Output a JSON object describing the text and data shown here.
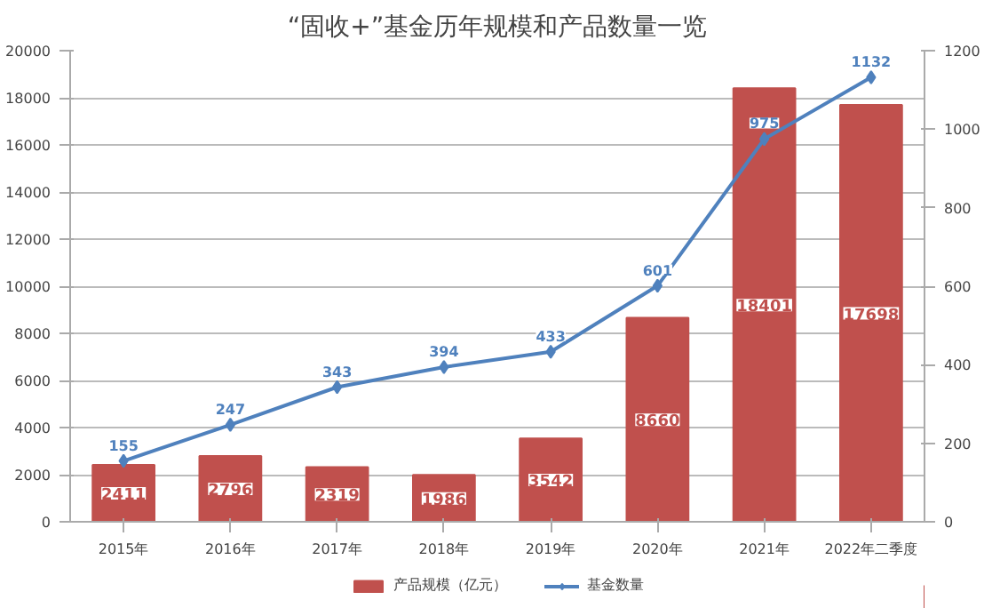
{
  "chart_data": {
    "type": "bar",
    "title": "“固收+”基金历年规模和产品数量一览",
    "categories": [
      "2015年",
      "2016年",
      "2017年",
      "2018年",
      "2019年",
      "2020年",
      "2021年",
      "2022年二季度"
    ],
    "series": [
      {
        "name": "产品规模（亿元）",
        "color": "#c0504d",
        "values": [
          2411,
          2796,
          2319,
          1986,
          3542,
          8660,
          18401,
          17698
        ]
      },
      {
        "name": "基金数量",
        "type": "line",
        "axis": "y2",
        "color": "#4f81bd",
        "marker": "diamond",
        "values": [
          155,
          247,
          343,
          394,
          433,
          601,
          975,
          1132
        ]
      }
    ],
    "ylim": [
      0,
      20000
    ],
    "yticks": [
      0,
      2000,
      4000,
      6000,
      8000,
      10000,
      12000,
      14000,
      16000,
      18000,
      20000
    ],
    "y2lim": [
      0,
      1200
    ],
    "y2ticks": [
      0,
      200,
      400,
      600,
      800,
      1000,
      1200
    ],
    "grid": "y",
    "legend": "bottom",
    "data_labels": true
  }
}
